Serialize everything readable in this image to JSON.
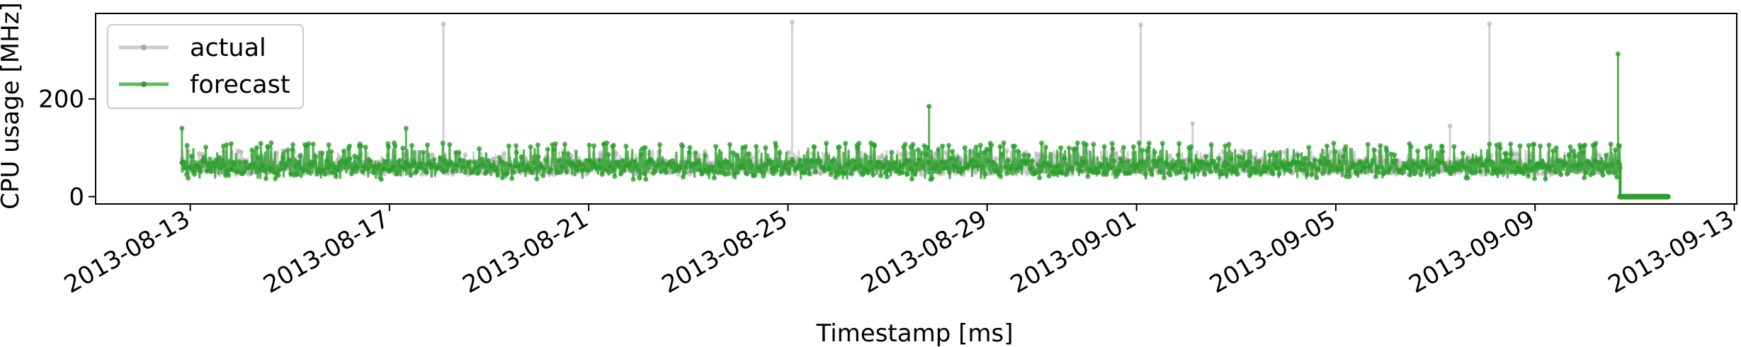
{
  "chart_data": {
    "type": "line",
    "xlabel": "Timestamp [ms]",
    "ylabel": "CPU usage [MHz]",
    "x_ticks": [
      "2013-08-13",
      "2013-08-17",
      "2013-08-21",
      "2013-08-25",
      "2013-08-29",
      "2013-09-01",
      "2013-09-05",
      "2013-09-09",
      "2013-09-13"
    ],
    "y_ticks": [
      0,
      200
    ],
    "ylim": [
      -15,
      375
    ],
    "xlim": [
      "2013-08-11",
      "2013-09-13"
    ],
    "x_range": [
      "2013-08-12T20:00",
      "2013-09-11T16:00"
    ],
    "legend": {
      "position": "upper-left",
      "entries": [
        "actual",
        "forecast"
      ]
    },
    "grid": false,
    "colors": {
      "actual": "#a9a9a9",
      "forecast": "#2ca02c"
    },
    "series": [
      {
        "name": "actual",
        "baseline_range": [
          45,
          95
        ],
        "spikes": [
          {
            "x": "2013-08-18T02:00",
            "y": 354
          },
          {
            "x": "2013-08-25T02:00",
            "y": 357
          },
          {
            "x": "2013-09-01T02:00",
            "y": 352
          },
          {
            "x": "2013-09-02T03:00",
            "y": 150
          },
          {
            "x": "2013-09-08T02:00",
            "y": 354
          },
          {
            "x": "2013-09-07T07:00",
            "y": 145
          }
        ],
        "end": "2013-09-10T17:00"
      },
      {
        "name": "forecast",
        "baseline_range": [
          35,
          110
        ],
        "spikes": [
          {
            "x": "2013-08-12T20:00",
            "y": 140
          },
          {
            "x": "2013-08-17T08:00",
            "y": 140
          },
          {
            "x": "2013-08-27T20:00",
            "y": 185
          },
          {
            "x": "2013-09-10T16:00",
            "y": 292
          }
        ],
        "tail": {
          "from": "2013-09-10T17:00",
          "to": "2013-09-11T16:00",
          "y": 0
        }
      }
    ]
  }
}
